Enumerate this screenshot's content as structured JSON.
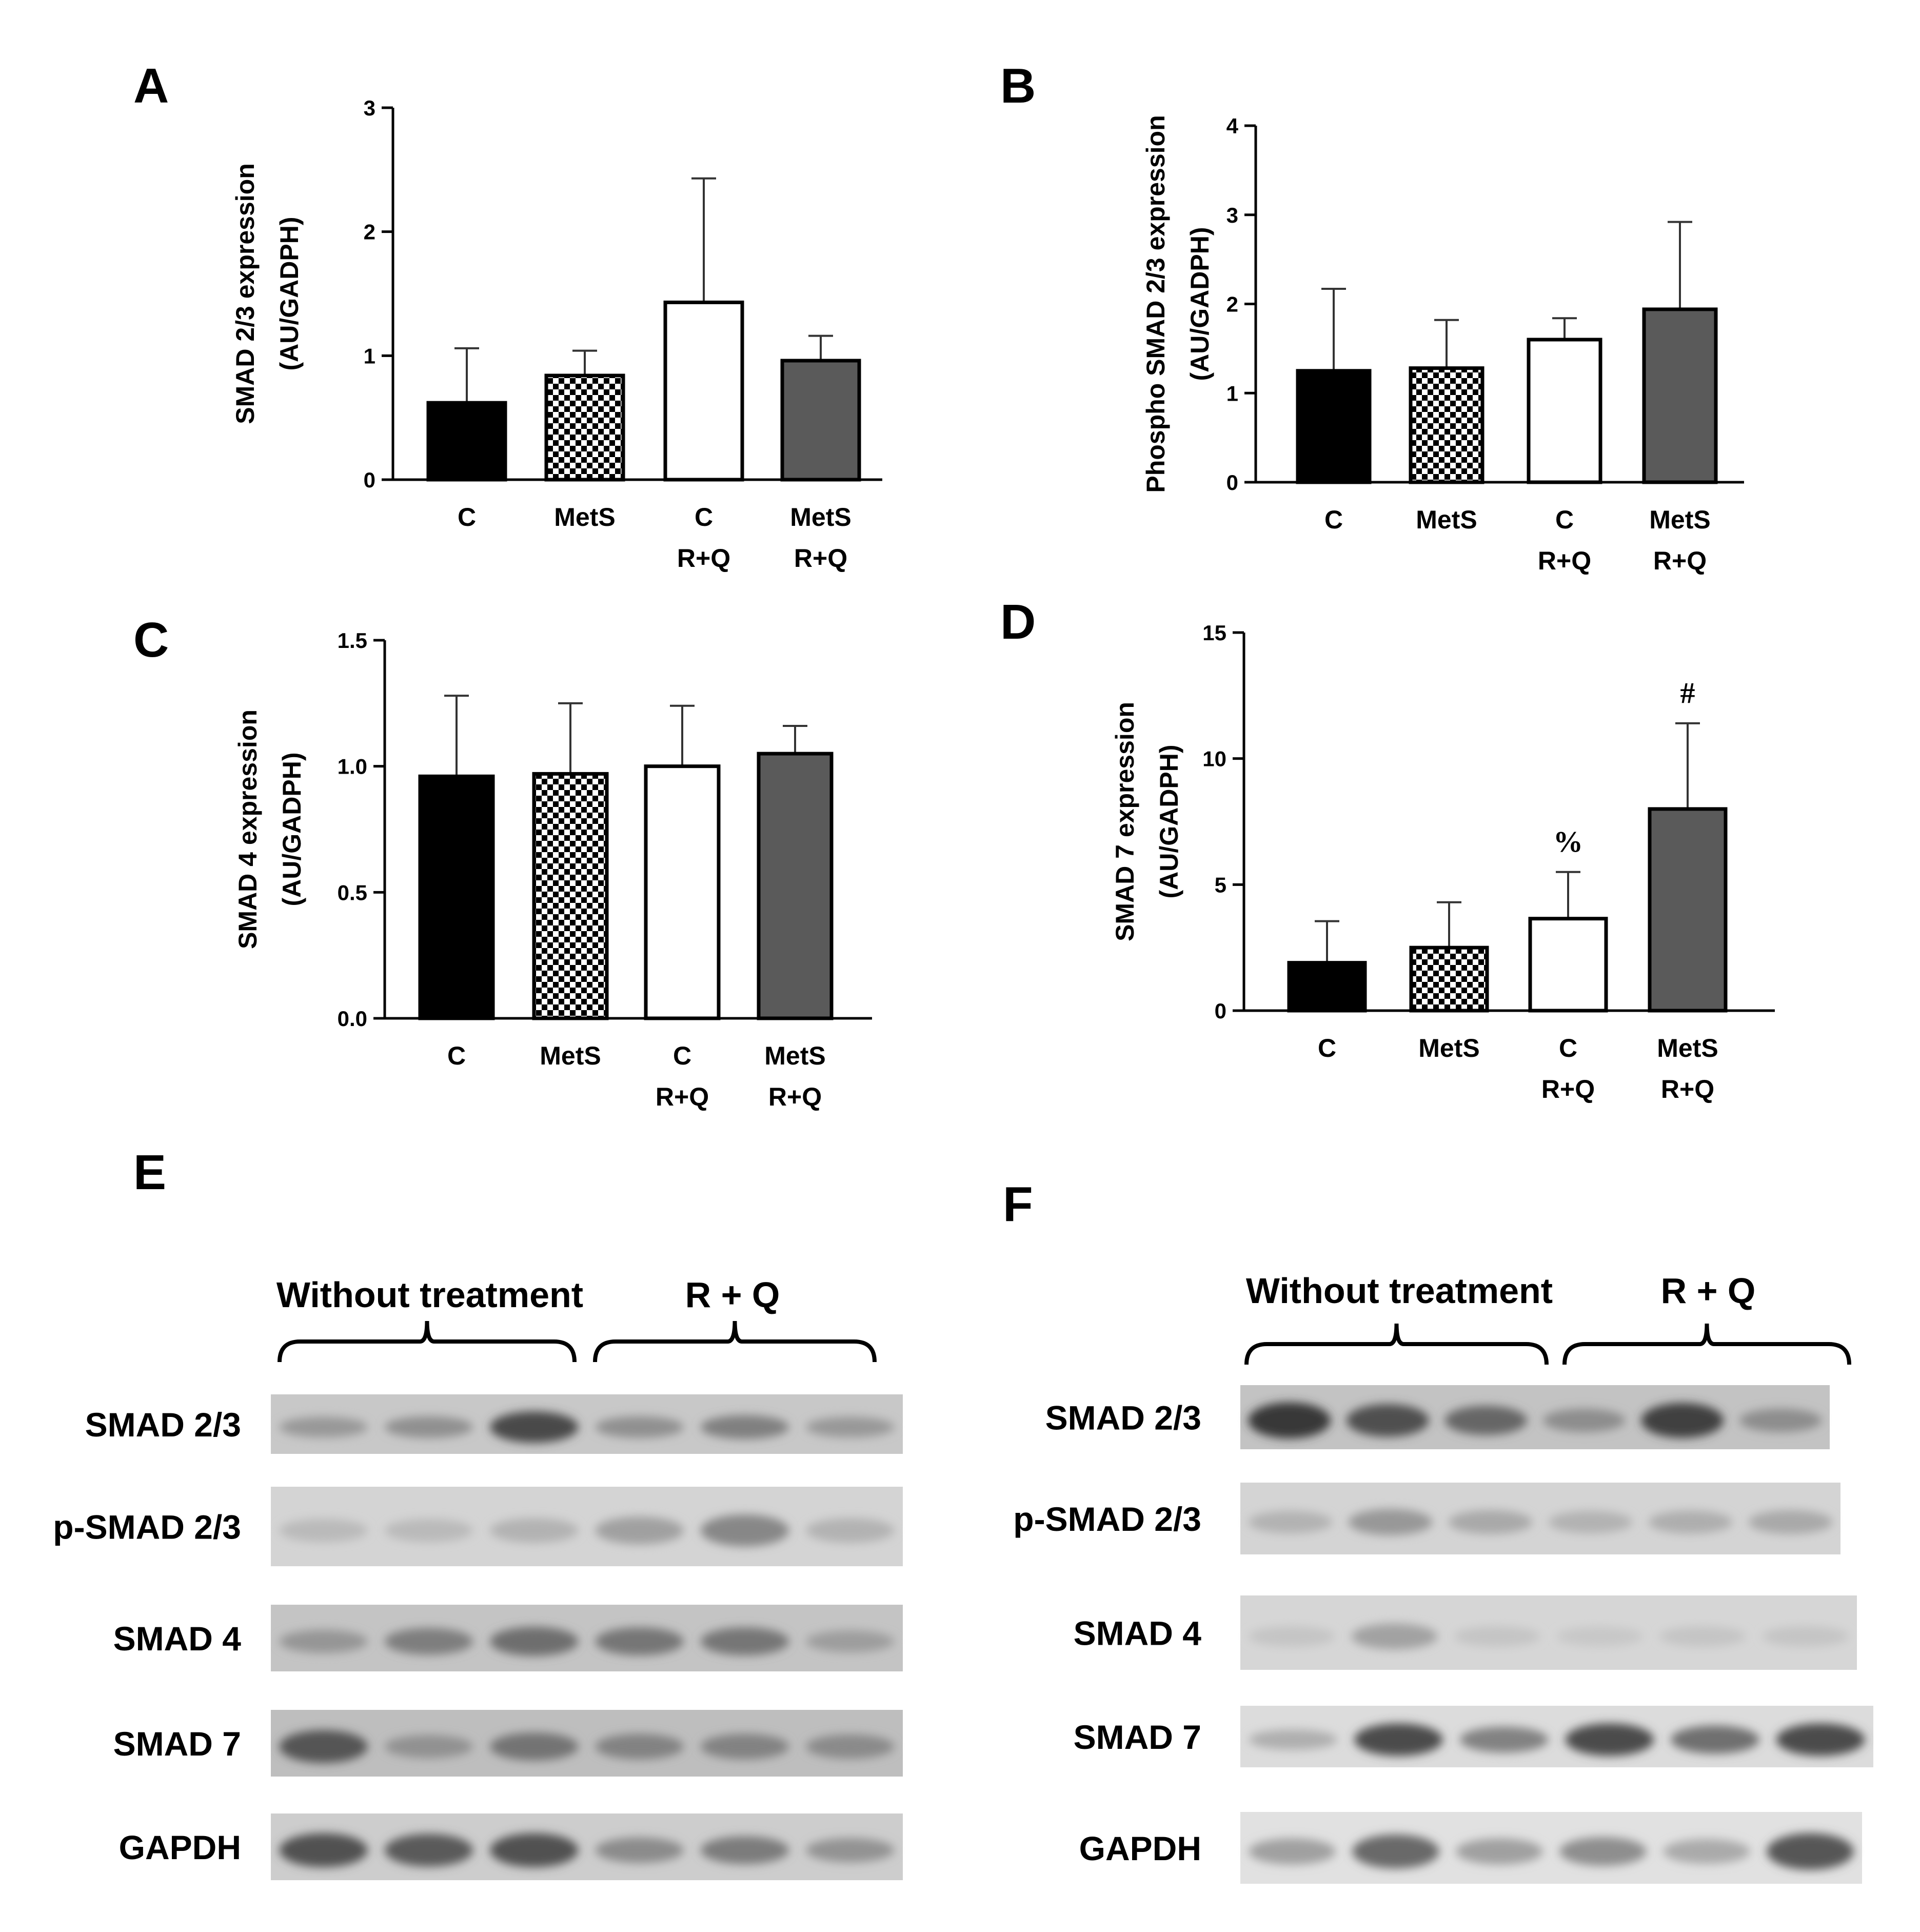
{
  "chart_data": [
    {
      "panel": "A",
      "type": "bar",
      "ylabel_lines": [
        "SMAD 2/3 expression",
        "(AU/GADPH)"
      ],
      "categories": [
        [
          "C"
        ],
        [
          "MetS"
        ],
        [
          "C",
          "R+Q"
        ],
        [
          "MetS",
          "R+Q"
        ]
      ],
      "values": [
        0.62,
        0.84,
        1.43,
        0.96
      ],
      "errors": [
        0.44,
        0.2,
        1.0,
        0.2
      ],
      "annotations": [
        "",
        "",
        "",
        ""
      ],
      "ylim": [
        0,
        3
      ],
      "yticks": [
        0,
        1,
        2,
        3
      ],
      "ytick_labels": [
        "0",
        "1",
        "2",
        "3"
      ],
      "grid": false
    },
    {
      "panel": "B",
      "type": "bar",
      "ylabel_lines": [
        "Phospho SMAD 2/3 expression",
        "(AU/GADPH)"
      ],
      "categories": [
        [
          "C"
        ],
        [
          "MetS"
        ],
        [
          "C",
          "R+Q"
        ],
        [
          "MetS",
          "R+Q"
        ]
      ],
      "values": [
        1.25,
        1.28,
        1.6,
        1.94
      ],
      "errors": [
        0.92,
        0.54,
        0.24,
        0.98
      ],
      "annotations": [
        "",
        "",
        "",
        ""
      ],
      "ylim": [
        0,
        4
      ],
      "yticks": [
        0,
        1,
        2,
        3,
        4
      ],
      "ytick_labels": [
        "0",
        "1",
        "2",
        "3",
        "4"
      ],
      "grid": false
    },
    {
      "panel": "C",
      "type": "bar",
      "ylabel_lines": [
        "SMAD 4 expression",
        "(AU/GADPH)"
      ],
      "categories": [
        [
          "C"
        ],
        [
          "MetS"
        ],
        [
          "C",
          "R+Q"
        ],
        [
          "MetS",
          "R+Q"
        ]
      ],
      "values": [
        0.96,
        0.97,
        1.0,
        1.05
      ],
      "errors": [
        0.32,
        0.28,
        0.24,
        0.11
      ],
      "annotations": [
        "",
        "",
        "",
        ""
      ],
      "ylim": [
        0,
        1.5
      ],
      "yticks": [
        0,
        0.5,
        1.0,
        1.5
      ],
      "ytick_labels": [
        "0.0",
        "0.5",
        "1.0",
        "1.5"
      ],
      "grid": false
    },
    {
      "panel": "D",
      "type": "bar",
      "ylabel_lines": [
        "SMAD 7 expression",
        "(AU/GADPH)"
      ],
      "categories": [
        [
          "C"
        ],
        [
          "MetS"
        ],
        [
          "C",
          "R+Q"
        ],
        [
          "MetS",
          "R+Q"
        ]
      ],
      "values": [
        1.9,
        2.5,
        3.65,
        8.0
      ],
      "errors": [
        1.65,
        1.8,
        1.85,
        3.4
      ],
      "annotations": [
        "",
        "",
        "%",
        "#"
      ],
      "ylim": [
        0,
        15
      ],
      "yticks": [
        0,
        5,
        10,
        15
      ],
      "ytick_labels": [
        "0",
        "5",
        "10",
        "15"
      ],
      "grid": false
    }
  ],
  "bar_styles": {
    "fills": [
      "#000000",
      "checker",
      "#ffffff",
      "#5a5a5a"
    ],
    "stroke": "#000000"
  },
  "blots": [
    {
      "panel": "E",
      "groups": [
        "Without treatment",
        "R + Q"
      ],
      "rows": [
        "SMAD 2/3",
        "p-SMAD 2/3",
        "SMAD 4",
        "SMAD 7",
        "GAPDH"
      ]
    },
    {
      "panel": "F",
      "groups": [
        "Without treatment",
        "R + Q"
      ],
      "rows": [
        "SMAD 2/3",
        "p-SMAD 2/3",
        "SMAD 4",
        "SMAD 7",
        "GAPDH"
      ]
    }
  ]
}
